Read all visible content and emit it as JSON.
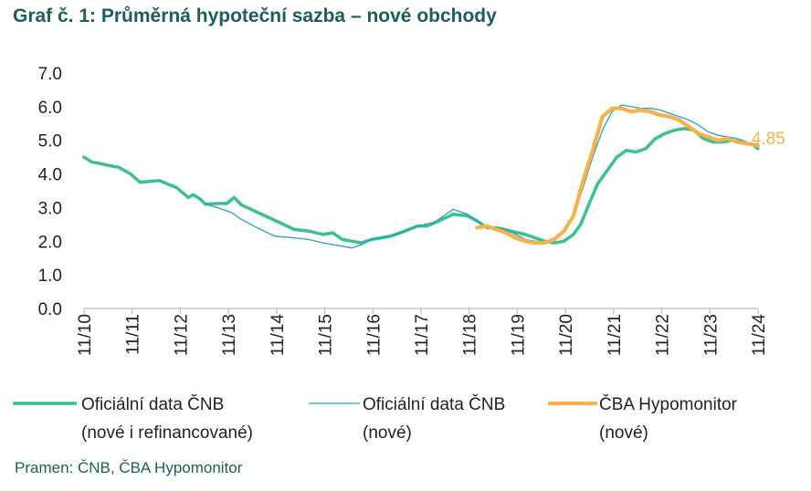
{
  "title": "Graf č. 1: Průměrná hypoteční sazba – nové obchody",
  "source": "Pramen: ČNB, ČBA Hypomonitor",
  "colors": {
    "title": "#1f5d58",
    "official_all": "#3cc08e",
    "official_new": "#2f9cc4",
    "cba": "#f7b24e",
    "end_label": "#f7b24e",
    "axis": "#bdbdbd"
  },
  "chart_data": {
    "type": "line",
    "title": "Graf č. 1: Průměrná hypoteční sazba – nové obchody",
    "x_tick_labels": [
      "11/10",
      "11/11",
      "11/12",
      "11/13",
      "11/14",
      "11/15",
      "11/16",
      "11/17",
      "11/18",
      "11/19",
      "11/20",
      "11/21",
      "11/22",
      "11/23",
      "11/24"
    ],
    "ylim": [
      0,
      7
    ],
    "y_tick_labels": [
      "0.0",
      "1.0",
      "2.0",
      "3.0",
      "4.0",
      "5.0",
      "6.0",
      "7.0"
    ],
    "grid": false,
    "legend_position": "bottom",
    "end_label": "4.85",
    "series": [
      {
        "name": "Oficiální data ČNB (nové i refinancované)",
        "legend_line1": "Oficiální data ČNB",
        "legend_line2": "(nové i refinancované)",
        "x": [
          2010.83,
          2011.0,
          2011.2,
          2011.35,
          2011.55,
          2011.8,
          2012.0,
          2012.2,
          2012.4,
          2012.6,
          2012.75,
          2013.0,
          2013.1,
          2013.25,
          2013.35,
          2013.6,
          2013.8,
          2013.95,
          2014.1,
          2014.3,
          2014.45,
          2014.6,
          2014.9,
          2015.2,
          2015.5,
          2015.8,
          2016.0,
          2016.2,
          2016.4,
          2016.6,
          2016.8,
          2017.0,
          2017.2,
          2017.5,
          2017.75,
          2017.95,
          2018.2,
          2018.5,
          2018.8,
          2019.0,
          2019.2,
          2019.4,
          2019.7,
          2020.0,
          2020.2,
          2020.4,
          2020.6,
          2020.8,
          2021.0,
          2021.15,
          2021.35,
          2021.5,
          2021.7,
          2021.9,
          2022.1,
          2022.3,
          2022.5,
          2022.7,
          2022.9,
          2023.1,
          2023.3,
          2023.5,
          2023.7,
          2023.9,
          2024.1,
          2024.3,
          2024.5,
          2024.75,
          2024.83
        ],
        "y": [
          4.5,
          4.35,
          4.3,
          4.25,
          4.2,
          4.0,
          3.75,
          3.78,
          3.8,
          3.68,
          3.6,
          3.3,
          3.38,
          3.25,
          3.1,
          3.12,
          3.12,
          3.3,
          3.08,
          2.95,
          2.85,
          2.75,
          2.55,
          2.35,
          2.3,
          2.2,
          2.25,
          2.05,
          2.0,
          1.95,
          2.05,
          2.1,
          2.15,
          2.3,
          2.45,
          2.45,
          2.6,
          2.8,
          2.75,
          2.6,
          2.4,
          2.4,
          2.3,
          2.2,
          2.1,
          2.0,
          1.95,
          2.0,
          2.2,
          2.5,
          3.2,
          3.7,
          4.1,
          4.5,
          4.7,
          4.65,
          4.75,
          5.05,
          5.2,
          5.3,
          5.35,
          5.3,
          5.05,
          4.95,
          4.95,
          5.0,
          4.95,
          4.85,
          4.75
        ],
        "color": "#3cc08e"
      },
      {
        "name": "Oficiální data ČNB (nové)",
        "legend_line1": "Oficiální data ČNB",
        "legend_line2": "(nové)",
        "x": [
          2013.35,
          2013.6,
          2013.9,
          2014.1,
          2014.3,
          2014.5,
          2014.8,
          2015.2,
          2015.5,
          2015.8,
          2016.0,
          2016.2,
          2016.4,
          2016.6,
          2016.8,
          2017.0,
          2017.3,
          2017.6,
          2017.9,
          2018.1,
          2018.3,
          2018.5,
          2018.8,
          2019.0,
          2019.2,
          2019.4,
          2019.6,
          2019.8,
          2020.0,
          2020.2,
          2020.4,
          2020.6,
          2020.8,
          2021.0,
          2021.2,
          2021.4,
          2021.6,
          2021.8,
          2022.0,
          2022.2,
          2022.4,
          2022.6,
          2022.8,
          2023.0,
          2023.2,
          2023.4,
          2023.6,
          2023.8,
          2024.0,
          2024.2,
          2024.4,
          2024.6,
          2024.8
        ],
        "y": [
          3.1,
          3.0,
          2.85,
          2.65,
          2.5,
          2.35,
          2.15,
          2.1,
          2.05,
          1.95,
          1.9,
          1.85,
          1.8,
          1.9,
          2.05,
          2.1,
          2.2,
          2.35,
          2.5,
          2.55,
          2.75,
          2.95,
          2.8,
          2.6,
          2.45,
          2.4,
          2.35,
          2.2,
          2.05,
          2.0,
          1.95,
          2.05,
          2.3,
          2.7,
          3.6,
          4.5,
          5.3,
          5.85,
          6.05,
          6.0,
          5.95,
          5.95,
          5.9,
          5.8,
          5.7,
          5.6,
          5.45,
          5.25,
          5.15,
          5.1,
          5.05,
          4.95,
          4.85
        ],
        "color": "#2f9cc4"
      },
      {
        "name": "ČBA Hypomonitor (nové)",
        "legend_line1": "ČBA Hypomonitor",
        "legend_line2": "(nové)",
        "x": [
          2019.0,
          2019.2,
          2019.4,
          2019.6,
          2019.8,
          2020.0,
          2020.2,
          2020.4,
          2020.6,
          2020.8,
          2021.0,
          2021.2,
          2021.4,
          2021.6,
          2021.8,
          2022.0,
          2022.2,
          2022.4,
          2022.6,
          2022.8,
          2023.0,
          2023.2,
          2023.4,
          2023.6,
          2023.8,
          2024.0,
          2024.2,
          2024.4,
          2024.6,
          2024.83
        ],
        "y": [
          2.4,
          2.45,
          2.35,
          2.25,
          2.1,
          2.0,
          1.95,
          1.95,
          2.05,
          2.3,
          2.75,
          3.8,
          4.7,
          5.7,
          5.95,
          5.95,
          5.85,
          5.9,
          5.85,
          5.75,
          5.7,
          5.6,
          5.4,
          5.2,
          5.1,
          5.0,
          5.05,
          4.95,
          4.9,
          4.85
        ],
        "color": "#f7b24e"
      }
    ]
  }
}
